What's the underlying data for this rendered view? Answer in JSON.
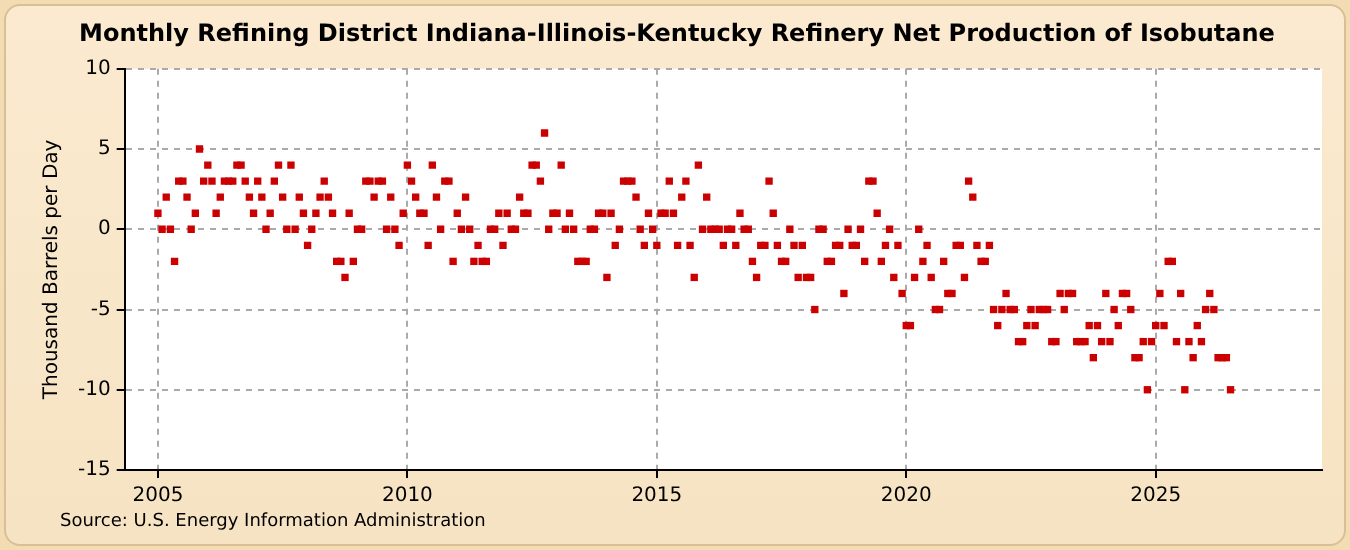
{
  "chart_data": {
    "type": "scatter",
    "title": "Monthly Refining District Indiana-Illinois-Kentucky Refinery Net Production of Isobutane",
    "ylabel": "Thousand Barrels per Day",
    "annotations": [
      "Source: U.S. Energy Information Administration"
    ],
    "x": [
      "2005-01",
      "2005-02",
      "2005-03",
      "2005-04",
      "2005-05",
      "2005-06",
      "2005-07",
      "2005-08",
      "2005-09",
      "2005-10",
      "2005-11",
      "2005-12",
      "2006-01",
      "2006-02",
      "2006-03",
      "2006-04",
      "2006-05",
      "2006-06",
      "2006-07",
      "2006-08",
      "2006-09",
      "2006-10",
      "2006-11",
      "2006-12",
      "2007-01",
      "2007-02",
      "2007-03",
      "2007-04",
      "2007-05",
      "2007-06",
      "2007-07",
      "2007-08",
      "2007-09",
      "2007-10",
      "2007-11",
      "2007-12",
      "2008-01",
      "2008-02",
      "2008-03",
      "2008-04",
      "2008-05",
      "2008-06",
      "2008-07",
      "2008-08",
      "2008-09",
      "2008-10",
      "2008-11",
      "2008-12",
      "2009-01",
      "2009-02",
      "2009-03",
      "2009-04",
      "2009-05",
      "2009-06",
      "2009-07",
      "2009-08",
      "2009-09",
      "2009-10",
      "2009-11",
      "2009-12",
      "2010-01",
      "2010-02",
      "2010-03",
      "2010-04",
      "2010-05",
      "2010-06",
      "2010-07",
      "2010-08",
      "2010-09",
      "2010-10",
      "2010-11",
      "2010-12",
      "2011-01",
      "2011-02",
      "2011-03",
      "2011-04",
      "2011-05",
      "2011-06",
      "2011-07",
      "2011-08",
      "2011-09",
      "2011-10",
      "2011-11",
      "2011-12",
      "2012-01",
      "2012-02",
      "2012-03",
      "2012-04",
      "2012-05",
      "2012-06",
      "2012-07",
      "2012-08",
      "2012-09",
      "2012-10",
      "2012-11",
      "2012-12",
      "2013-01",
      "2013-02",
      "2013-03",
      "2013-04",
      "2013-05",
      "2013-06",
      "2013-07",
      "2013-08",
      "2013-09",
      "2013-10",
      "2013-11",
      "2013-12",
      "2014-01",
      "2014-02",
      "2014-03",
      "2014-04",
      "2014-05",
      "2014-06",
      "2014-07",
      "2014-08",
      "2014-09",
      "2014-10",
      "2014-11",
      "2014-12",
      "2015-01",
      "2015-02",
      "2015-03",
      "2015-04",
      "2015-05",
      "2015-06",
      "2015-07",
      "2015-08",
      "2015-09",
      "2015-10",
      "2015-11",
      "2015-12",
      "2016-01",
      "2016-02",
      "2016-03",
      "2016-04",
      "2016-05",
      "2016-06",
      "2016-07",
      "2016-08",
      "2016-09",
      "2016-10",
      "2016-11",
      "2016-12",
      "2017-01",
      "2017-02",
      "2017-03",
      "2017-04",
      "2017-05",
      "2017-06",
      "2017-07",
      "2017-08",
      "2017-09",
      "2017-10",
      "2017-11",
      "2017-12",
      "2018-01",
      "2018-02",
      "2018-03",
      "2018-04",
      "2018-05",
      "2018-06",
      "2018-07",
      "2018-08",
      "2018-09",
      "2018-10",
      "2018-11",
      "2018-12",
      "2019-01",
      "2019-02",
      "2019-03",
      "2019-04",
      "2019-05",
      "2019-06",
      "2019-07",
      "2019-08",
      "2019-09",
      "2019-10",
      "2019-11",
      "2019-12",
      "2020-01",
      "2020-02",
      "2020-03",
      "2020-04",
      "2020-05",
      "2020-06",
      "2020-07",
      "2020-08",
      "2020-09",
      "2020-10",
      "2020-11",
      "2020-12",
      "2021-01",
      "2021-02",
      "2021-03",
      "2021-04",
      "2021-05",
      "2021-06",
      "2021-07",
      "2021-08",
      "2021-09",
      "2021-10",
      "2021-11",
      "2021-12",
      "2022-01",
      "2022-02",
      "2022-03",
      "2022-04",
      "2022-05",
      "2022-06",
      "2022-07",
      "2022-08",
      "2022-09",
      "2022-10",
      "2022-11",
      "2022-12",
      "2023-01",
      "2023-02",
      "2023-03",
      "2023-04",
      "2023-05",
      "2023-06",
      "2023-07",
      "2023-08",
      "2023-09",
      "2023-10",
      "2023-11",
      "2023-12",
      "2024-01",
      "2024-02",
      "2024-03",
      "2024-04",
      "2024-05",
      "2024-06",
      "2024-07",
      "2024-08",
      "2024-09",
      "2024-10",
      "2024-11",
      "2024-12",
      "2025-01",
      "2025-02",
      "2025-03",
      "2025-04",
      "2025-05",
      "2025-06",
      "2025-07",
      "2025-08",
      "2025-09",
      "2025-10",
      "2025-11",
      "2025-12",
      "2026-01",
      "2026-02",
      "2026-03",
      "2026-04",
      "2026-05",
      "2026-06",
      "2026-07"
    ],
    "series": [
      {
        "color": "#cc0000",
        "values": [
          1,
          0,
          2,
          0,
          -2,
          3,
          3,
          2,
          0,
          1,
          5,
          3,
          4,
          3,
          1,
          2,
          3,
          3,
          3,
          4,
          4,
          3,
          2,
          1,
          3,
          2,
          0,
          1,
          3,
          4,
          2,
          0,
          4,
          0,
          2,
          1,
          -1,
          0,
          1,
          2,
          3,
          2,
          1,
          -2,
          -2,
          -3,
          1,
          -2,
          0,
          0,
          3,
          3,
          2,
          3,
          3,
          0,
          2,
          0,
          -1,
          1,
          4,
          3,
          2,
          1,
          1,
          -1,
          4,
          2,
          0,
          3,
          3,
          -2,
          1,
          0,
          2,
          0,
          -2,
          -1,
          -2,
          -2,
          0,
          0,
          1,
          -1,
          1,
          0,
          0,
          2,
          1,
          1,
          4,
          4,
          3,
          6,
          0,
          1,
          1,
          4,
          0,
          1,
          0,
          -2,
          -2,
          -2,
          0,
          0,
          1,
          1,
          -3,
          1,
          -1,
          0,
          3,
          3,
          3,
          2,
          0,
          -1,
          1,
          0,
          -1,
          1,
          1,
          3,
          1,
          -1,
          2,
          3,
          -1,
          -3,
          4,
          0,
          2,
          0,
          0,
          0,
          -1,
          0,
          0,
          -1,
          1,
          0,
          0,
          -2,
          -3,
          -1,
          -1,
          3,
          1,
          -1,
          -2,
          -2,
          0,
          -1,
          -3,
          -1,
          -3,
          -3,
          -5,
          0,
          0,
          -2,
          -2,
          -1,
          -1,
          -4,
          0,
          -1,
          -1,
          0,
          -2,
          3,
          3,
          1,
          -2,
          -1,
          0,
          -3,
          -1,
          -4,
          -6,
          -6,
          -3,
          0,
          -2,
          -1,
          -3,
          -5,
          -5,
          -2,
          -4,
          -4,
          -1,
          -1,
          -3,
          3,
          2,
          -1,
          -2,
          -2,
          -1,
          -5,
          -6,
          -5,
          -4,
          -5,
          -5,
          -7,
          -7,
          -6,
          -5,
          -6,
          -5,
          -5,
          -5,
          -7,
          -7,
          -4,
          -5,
          -4,
          -4,
          -7,
          -7,
          -7,
          -6,
          -8,
          -6,
          -7,
          -4,
          -7,
          -5,
          -6,
          -4,
          -4,
          -5,
          -8,
          -8,
          -7,
          -10,
          -7,
          -6,
          -4,
          -6,
          -2,
          -2,
          -7,
          -4,
          -10,
          -7,
          -8,
          -6,
          -7,
          -5,
          -4,
          -5,
          -8,
          -8,
          -8,
          -10
        ]
      }
    ],
    "xlim": [
      "2004-05",
      "2028-05"
    ],
    "xticks": [
      {
        "value": "2005",
        "label": "2005"
      },
      {
        "value": "2010",
        "label": "2010"
      },
      {
        "value": "2015",
        "label": "2015"
      },
      {
        "value": "2020",
        "label": "2020"
      },
      {
        "value": "2025",
        "label": "2025"
      }
    ],
    "ylim": [
      -15,
      10
    ],
    "yticks": [
      -15,
      -10,
      -5,
      0,
      5,
      10
    ],
    "grid": true,
    "marker": "square",
    "legend": false
  }
}
